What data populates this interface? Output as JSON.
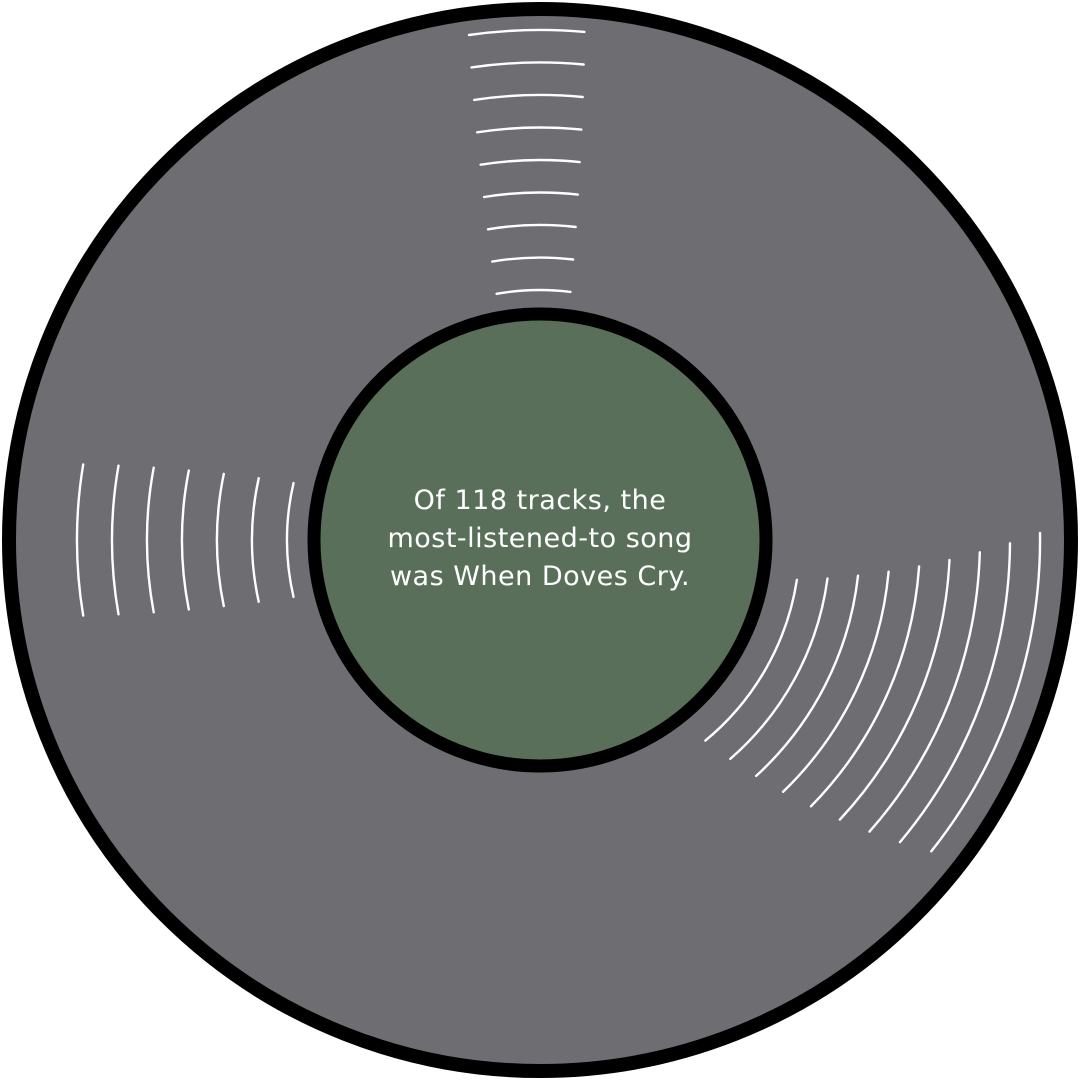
{
  "caption": {
    "line1": "Of 118 tracks, the",
    "line2": "most-listened-to song",
    "line3": "was When Doves Cry."
  },
  "colors": {
    "vinyl": "#6e6d72",
    "outline": "#000000",
    "label": "#5a6f5a",
    "groove": "#ffffff"
  }
}
